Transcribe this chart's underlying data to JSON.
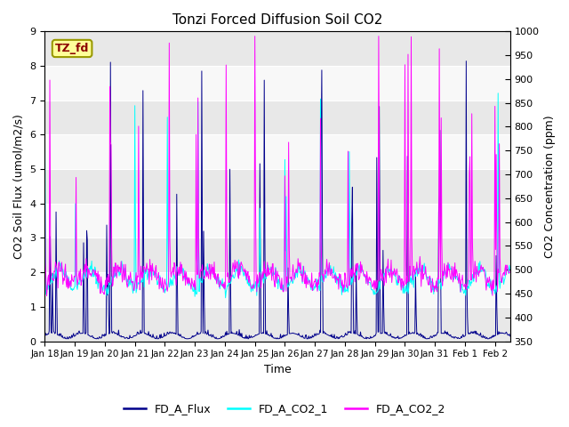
{
  "title": "Tonzi Forced Diffusion Soil CO2",
  "xlabel": "Time",
  "ylabel_left": "CO2 Soil Flux (umol/m2/s)",
  "ylabel_right": "CO2 Concentration (ppm)",
  "ylim_left": [
    0.0,
    9.0
  ],
  "ylim_right": [
    350,
    1000
  ],
  "yticks_left": [
    0.0,
    1.0,
    2.0,
    3.0,
    4.0,
    5.0,
    6.0,
    7.0,
    8.0,
    9.0
  ],
  "yticks_right": [
    350,
    400,
    450,
    500,
    550,
    600,
    650,
    700,
    750,
    800,
    850,
    900,
    950,
    1000
  ],
  "color_flux": "#00008B",
  "color_co2_1": "#00FFFF",
  "color_co2_2": "#FF00FF",
  "legend_labels": [
    "FD_A_Flux",
    "FD_A_CO2_1",
    "FD_A_CO2_2"
  ],
  "tag_text": "TZ_fd",
  "tag_facecolor": "#FFFF99",
  "tag_edgecolor": "#999900",
  "tag_textcolor": "#8B0000",
  "background_color": "#ffffff",
  "plot_bg_color": "#ffffff",
  "band_colors": [
    "#e8e8e8",
    "#f8f8f8"
  ],
  "grid_color": "#ffffff"
}
